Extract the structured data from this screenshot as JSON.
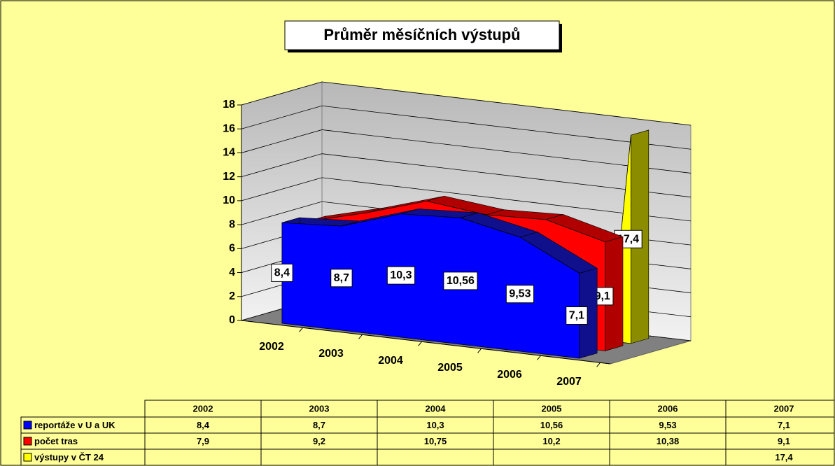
{
  "chart_data": {
    "type": "area",
    "title": "Průměr měsíčních výstupů",
    "categories": [
      "2002",
      "2003",
      "2004",
      "2005",
      "2006",
      "2007"
    ],
    "series": [
      {
        "name": "reportáže v U a UK",
        "color": "#0000ff",
        "values": [
          8.4,
          8.7,
          10.3,
          10.56,
          9.53,
          7.1
        ],
        "value_labels": [
          "8,4",
          "8,7",
          "10,3",
          "10,56",
          "9,53",
          "7,1"
        ]
      },
      {
        "name": "počet tras",
        "color": "#ff0000",
        "values": [
          7.9,
          9.2,
          10.75,
          10.2,
          10.38,
          9.1
        ],
        "value_labels": [
          "7,9",
          "9,2",
          "10,75",
          "10,2",
          "10,38",
          "9,1"
        ]
      },
      {
        "name": "výstupy v ČT 24",
        "color": "#ffff00",
        "values": [
          null,
          null,
          null,
          null,
          null,
          17.4
        ],
        "value_labels": [
          null,
          null,
          null,
          null,
          null,
          "17,4"
        ]
      }
    ],
    "ylim": [
      0,
      18
    ],
    "yticks": [
      0,
      2,
      4,
      6,
      8,
      10,
      12,
      14,
      16,
      18
    ],
    "grid": true
  }
}
